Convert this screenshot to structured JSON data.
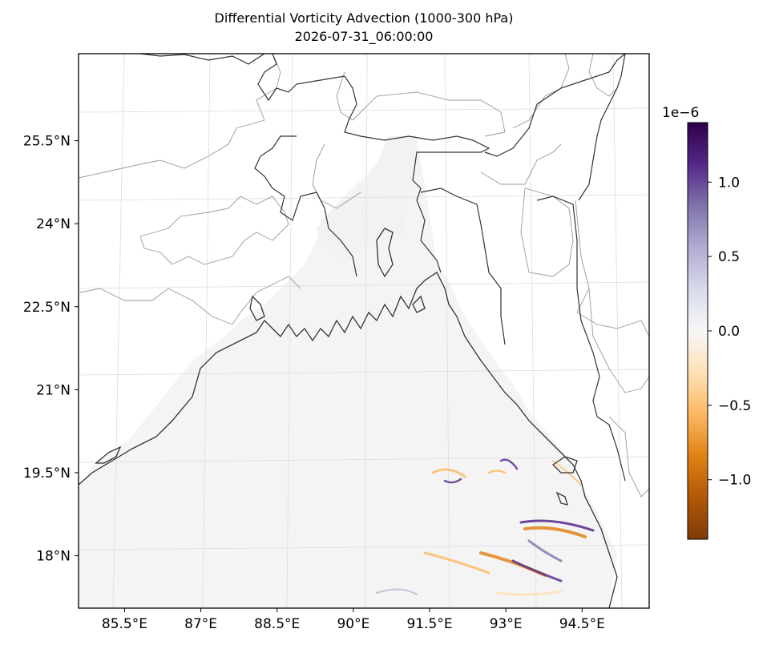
{
  "title": {
    "line1": "Differential Vorticity Advection (1000-300 hPa)",
    "line2": "2026-07-31_06:00:00"
  },
  "map": {
    "lon_range": [
      84.5,
      95.5
    ],
    "lat_range": [
      17.0,
      27.0
    ],
    "lon_ticks": [
      {
        "value": 85.5,
        "label": "85.5°E"
      },
      {
        "value": 87.0,
        "label": "87°E"
      },
      {
        "value": 88.5,
        "label": "88.5°E"
      },
      {
        "value": 90.0,
        "label": "90°E"
      },
      {
        "value": 91.5,
        "label": "91.5°E"
      },
      {
        "value": 93.0,
        "label": "93°E"
      },
      {
        "value": 94.5,
        "label": "94.5°E"
      }
    ],
    "lat_ticks": [
      {
        "value": 25.5,
        "label": "25.5°N"
      },
      {
        "value": 24.0,
        "label": "24°N"
      },
      {
        "value": 22.5,
        "label": "22.5°N"
      },
      {
        "value": 21.0,
        "label": "21°N"
      },
      {
        "value": 19.5,
        "label": "19.5°N"
      },
      {
        "value": 18.0,
        "label": "18°N"
      }
    ],
    "colors": {
      "coastline": "#333333",
      "borders": "#999999",
      "gridlines": "#dddddd",
      "ocean_field": "#f4f4f4"
    }
  },
  "colorbar": {
    "colormap": "PuOr",
    "exponent_label": "1e−6",
    "range": [
      -1.4e-06,
      1.4e-06
    ],
    "ticks": [
      {
        "value": 1.0,
        "label": "1.0"
      },
      {
        "value": 0.5,
        "label": "0.5"
      },
      {
        "value": 0.0,
        "label": "0.0"
      },
      {
        "value": -0.5,
        "label": "−0.5"
      },
      {
        "value": -1.0,
        "label": "−1.0"
      }
    ],
    "stops": [
      "#7f3b08",
      "#b35806",
      "#e08214",
      "#fdb863",
      "#fee0b6",
      "#f7f7f7",
      "#d8daeb",
      "#b2abd2",
      "#8073ac",
      "#542788",
      "#2d004b"
    ]
  }
}
